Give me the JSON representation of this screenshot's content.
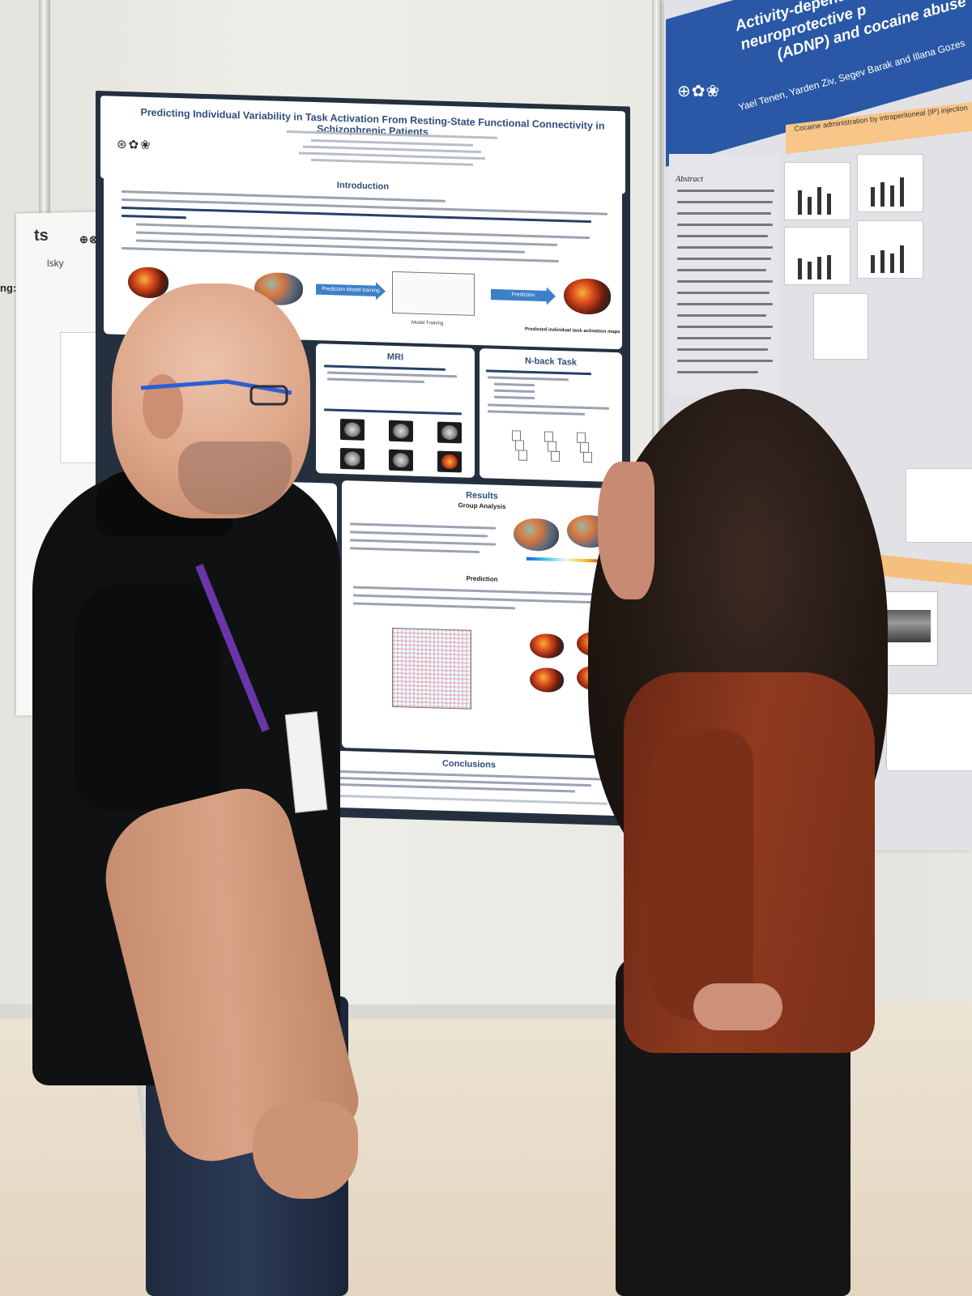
{
  "photo": {
    "description_tag": "conference-poster-session",
    "colors": {
      "poster_frame": "#25303f",
      "poster_accent": "#2f4e7a",
      "right_banner": "#2a58a6",
      "woman_top": "#8e3a1f",
      "man_shirt": "#101112",
      "lanyard": "#6a35a8"
    }
  },
  "main_poster": {
    "title": "Predicting Individual Variability in Task Activation From Resting-State Functional Connectivity in Schizophrenic Patients",
    "sections": {
      "introduction": "Introduction",
      "mri": "MRI",
      "nback": "N-back Task",
      "results": "Results",
      "group_analysis": "Group Analysis",
      "prediction": "Prediction",
      "conclusions": "Conclusions",
      "model_training": "Model Training",
      "arrow_training": "Prediction Model training",
      "arrow_prediction": "Prediction",
      "predicted_maps": "Predicted individual task activation maps"
    }
  },
  "right_poster": {
    "title_line1": "Activity-dependent neuroprotective p",
    "title_line2": "(ADNP) and cocaine abuse",
    "authors": "Yael Tenen, Yarden Ziv, Segev Barak and Illana Gozes",
    "orange_label": "Cocaine administration by intraperitoneal (IP) injection",
    "abstract_label": "Abstract"
  },
  "left_poster": {
    "title_fragment": "ts",
    "sub_fragment": "lsky",
    "edge_fragment": "ng:"
  }
}
